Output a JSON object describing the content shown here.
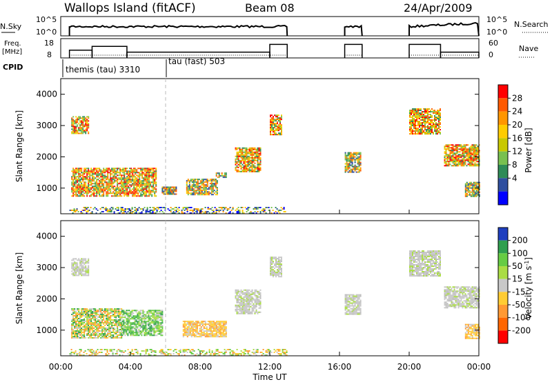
{
  "header": {
    "station": "Wallops Island (fitACF)",
    "beam": "Beam 08",
    "date": "24/Apr/2009"
  },
  "noise_panel": {
    "left_label": "N.Sky",
    "right_label": "N.Search",
    "left_ticks": [
      "10^5",
      "10^0"
    ],
    "right_ticks": [
      "10^5",
      "10^0"
    ]
  },
  "freq_panel": {
    "left_label": "Freq.",
    "left_unit": "[MHz]",
    "right_label": "Nave",
    "left_ticks": [
      "18",
      "8"
    ],
    "right_ticks": [
      "60",
      "0"
    ]
  },
  "cpid": {
    "label": "CPID",
    "modes": [
      {
        "name": "themis (tau) 3310",
        "start_hour": 0
      },
      {
        "name": "tau (fast) 503",
        "start_hour": 6
      }
    ]
  },
  "x_axis": {
    "label": "Time UT",
    "ticks": [
      "00:00",
      "04:00",
      "08:00",
      "12:00",
      "16:00",
      "20:00",
      "00:00"
    ],
    "range_hours": [
      0,
      24
    ]
  },
  "y_axis": {
    "label": "Slant Range [km]",
    "ticks": [
      "1000",
      "2000",
      "3000",
      "4000"
    ],
    "range_km": [
      180,
      4500
    ]
  },
  "power_colorbar": {
    "label": "Power [dB]",
    "ticks": [
      "28",
      "24",
      "20",
      "16",
      "12",
      "8",
      "4"
    ],
    "colors": [
      "#ff0000",
      "#ff5a00",
      "#ff9600",
      "#ffcc00",
      "#c8c800",
      "#78c050",
      "#2e8b57",
      "#2f4f9f",
      "#0000ff"
    ]
  },
  "velocity_colorbar": {
    "label": "Velocity [m s",
    "label_sup": "-1",
    "label_close": "]",
    "ticks": [
      "200",
      "100",
      "50",
      "15",
      "-15",
      "-50",
      "-100",
      "-200"
    ],
    "colors": [
      "#1f3fbf",
      "#2f9f4f",
      "#66cc44",
      "#aadd44",
      "#c8c8c8",
      "#ffcc33",
      "#ff9933",
      "#ff6600",
      "#ff0000"
    ]
  },
  "chart_data": {
    "type": "heatmap",
    "title": "Wallops Island (fitACF)",
    "xlabel": "Time UT",
    "ylabel": "Slant Range [km]",
    "xlim_hours": [
      0,
      24
    ],
    "ylim_km": [
      180,
      4500
    ],
    "operating_periods_hours": [
      [
        0.5,
        13.0
      ],
      [
        16.3,
        17.3
      ],
      [
        20.0,
        24.0
      ]
    ],
    "frequency_mhz": [
      {
        "start": 0.5,
        "end": 1.8,
        "value": 12
      },
      {
        "start": 1.8,
        "end": 3.8,
        "value": 14
      },
      {
        "start": 3.8,
        "end": 12.0,
        "value": 11
      },
      {
        "start": 12.0,
        "end": 13.0,
        "value": 15
      },
      {
        "start": 16.3,
        "end": 17.3,
        "value": 15
      },
      {
        "start": 20.0,
        "end": 21.8,
        "value": 15
      },
      {
        "start": 21.8,
        "end": 24.0,
        "value": 11
      }
    ],
    "power_regions": [
      {
        "t0": 0.6,
        "t1": 1.6,
        "r0": 2750,
        "r1": 3300,
        "level": "high"
      },
      {
        "t0": 0.6,
        "t1": 5.5,
        "r0": 750,
        "r1": 1650,
        "level": "high"
      },
      {
        "t0": 5.8,
        "t1": 6.6,
        "r0": 800,
        "r1": 1050,
        "level": "medium"
      },
      {
        "t0": 7.2,
        "t1": 9.0,
        "r0": 800,
        "r1": 1300,
        "level": "medium"
      },
      {
        "t0": 8.9,
        "t1": 9.5,
        "r0": 1350,
        "r1": 1500,
        "level": "medium"
      },
      {
        "t0": 10.0,
        "t1": 11.5,
        "r0": 1550,
        "r1": 2300,
        "level": "high"
      },
      {
        "t0": 12.0,
        "t1": 12.7,
        "r0": 2700,
        "r1": 3350,
        "level": "high"
      },
      {
        "t0": 16.3,
        "t1": 17.2,
        "r0": 1500,
        "r1": 2150,
        "level": "medium"
      },
      {
        "t0": 20.0,
        "t1": 21.8,
        "r0": 2750,
        "r1": 3550,
        "level": "high"
      },
      {
        "t0": 22.0,
        "t1": 24.0,
        "r0": 1700,
        "r1": 2400,
        "level": "high"
      },
      {
        "t0": 23.2,
        "t1": 24.0,
        "r0": 750,
        "r1": 1200,
        "level": "medium"
      },
      {
        "t0": 0.5,
        "t1": 13.0,
        "r0": 180,
        "r1": 400,
        "level": "low"
      }
    ],
    "velocity_regions": [
      {
        "t0": 0.6,
        "t1": 1.6,
        "r0": 2750,
        "r1": 3300,
        "level": "gray"
      },
      {
        "t0": 0.6,
        "t1": 3.5,
        "r0": 750,
        "r1": 1700,
        "level": "mixed"
      },
      {
        "t0": 3.5,
        "t1": 5.8,
        "r0": 850,
        "r1": 1650,
        "level": "green"
      },
      {
        "t0": 7.0,
        "t1": 9.5,
        "r0": 800,
        "r1": 1300,
        "level": "orange"
      },
      {
        "t0": 10.0,
        "t1": 11.5,
        "r0": 1550,
        "r1": 2300,
        "level": "gray"
      },
      {
        "t0": 12.0,
        "t1": 12.7,
        "r0": 2700,
        "r1": 3350,
        "level": "gray"
      },
      {
        "t0": 16.3,
        "t1": 17.2,
        "r0": 1500,
        "r1": 2150,
        "level": "gray"
      },
      {
        "t0": 20.0,
        "t1": 21.8,
        "r0": 2750,
        "r1": 3550,
        "level": "gray"
      },
      {
        "t0": 22.0,
        "t1": 24.0,
        "r0": 1700,
        "r1": 2400,
        "level": "gray"
      },
      {
        "t0": 23.2,
        "t1": 24.0,
        "r0": 750,
        "r1": 1200,
        "level": "orange"
      },
      {
        "t0": 0.5,
        "t1": 13.0,
        "r0": 180,
        "r1": 400,
        "level": "low"
      }
    ]
  }
}
